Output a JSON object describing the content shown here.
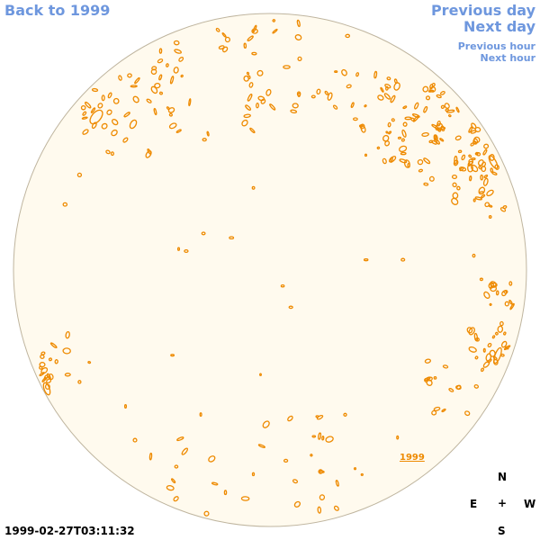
{
  "nav": {
    "back_label": "Back to 1999",
    "prev_day_label": "Previous day",
    "next_day_label": "Next day",
    "prev_hour_label": "Previous hour",
    "next_hour_label": "Next hour"
  },
  "compass": {
    "north": "N",
    "east": "E",
    "center": "+",
    "west": "W",
    "south": "S"
  },
  "timestamp": "1999-02-27T03:11:32",
  "year_link": "1999",
  "colors": {
    "link": "#6e97de",
    "disk_fill": "#fffaee",
    "disk_edge": "#bfb59f",
    "contour": "#ee8a00"
  }
}
